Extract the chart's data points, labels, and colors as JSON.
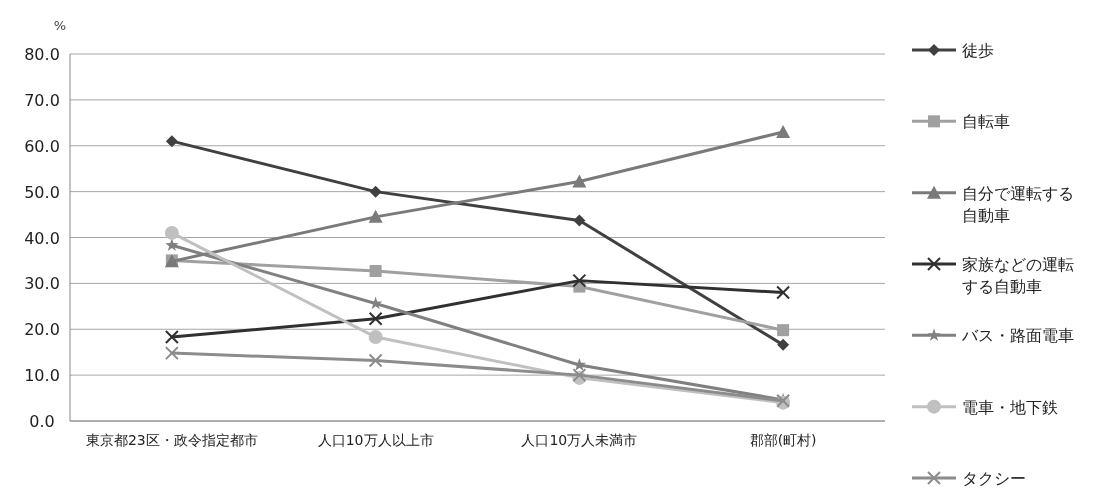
{
  "chart_data": {
    "type": "line",
    "ylabel": "%",
    "categories": [
      "東京都23区・政令指定都市",
      "人口10万人以上市",
      "人口10万人未満市",
      "郡部(町村)"
    ],
    "series": [
      {
        "name": "徒歩",
        "color": "#404040",
        "marker": "diamond",
        "values": [
          61.0,
          50.0,
          43.7,
          16.6
        ]
      },
      {
        "name": "自転車",
        "color": "#a0a0a0",
        "marker": "square",
        "values": [
          35.0,
          32.7,
          29.3,
          19.8
        ]
      },
      {
        "name": "自分で運転する自動車",
        "color": "#7a7a7a",
        "marker": "triangle",
        "values": [
          34.8,
          44.5,
          52.2,
          63.0
        ]
      },
      {
        "name": "家族などの運転する自動車",
        "color": "#303030",
        "marker": "cross",
        "values": [
          18.3,
          22.3,
          30.6,
          28.0
        ]
      },
      {
        "name": "バス・路面電車",
        "color": "#808080",
        "marker": "star",
        "values": [
          38.3,
          25.6,
          12.2,
          4.6
        ]
      },
      {
        "name": "電車・地下鉄",
        "color": "#c0c0c0",
        "marker": "circle",
        "values": [
          41.0,
          18.3,
          9.4,
          4.0
        ]
      },
      {
        "name": "タクシー",
        "color": "#8c8c8c",
        "marker": "cross",
        "values": [
          14.8,
          13.2,
          10.0,
          4.4
        ]
      }
    ],
    "ylim": [
      0,
      80
    ],
    "yticks": [
      {
        "value": 0,
        "label": "0.0"
      },
      {
        "value": 10,
        "label": "10.0"
      },
      {
        "value": 20,
        "label": "20.0"
      },
      {
        "value": 30,
        "label": "30.0"
      },
      {
        "value": 40,
        "label": "40.0"
      },
      {
        "value": 50,
        "label": "50.0"
      },
      {
        "value": 60,
        "label": "60.0"
      },
      {
        "value": 70,
        "label": "70.0"
      },
      {
        "value": 80,
        "label": "80.0"
      }
    ],
    "grid": "y",
    "legend": "right"
  }
}
